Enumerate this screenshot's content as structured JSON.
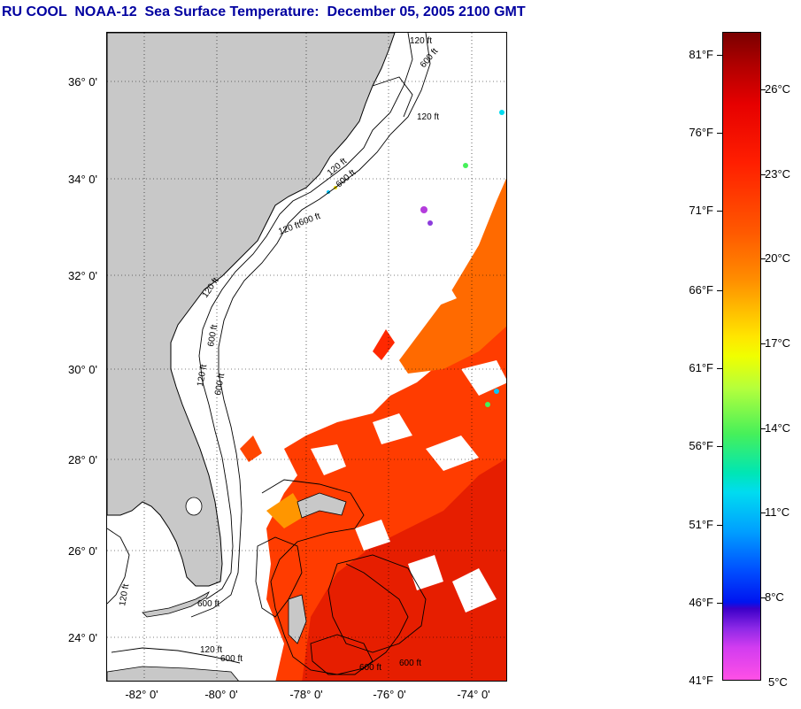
{
  "title": "RU COOL  NOAA-12  Sea Surface Temperature:  December 05, 2005 2100 GMT",
  "map": {
    "lat_labels": [
      "36° 0'",
      "34° 0'",
      "32° 0'",
      "30° 0'",
      "28° 0'",
      "26° 0'",
      "24° 0'"
    ],
    "lon_labels": [
      "-82° 0'",
      "-80° 0'",
      "-78° 0'",
      "-76° 0'",
      "-74° 0'"
    ],
    "contour_labels": [
      "120 ft",
      "600 ft",
      "120 ft",
      "120 ft",
      "600 ft",
      "120 ft",
      "600 ft",
      "120 ft",
      "600 ft",
      "600 ft",
      "120 ft",
      "600 ft",
      "120 ft",
      "120 ft",
      "600 ft",
      "600 ft",
      "600 ft"
    ],
    "colors": {
      "land": "#c8c8c8",
      "sst_warm": "#ff3c00",
      "sst_hot": "#e61e00",
      "sst_mid": "#ff7800"
    }
  },
  "colorbar": {
    "fahrenheit": [
      "81°F",
      "76°F",
      "71°F",
      "66°F",
      "61°F",
      "56°F",
      "51°F",
      "46°F",
      "41°F"
    ],
    "celsius": [
      "26°C",
      "23°C",
      "20°C",
      "17°C",
      "14°C",
      "11°C",
      "8°C",
      "5°C"
    ]
  }
}
